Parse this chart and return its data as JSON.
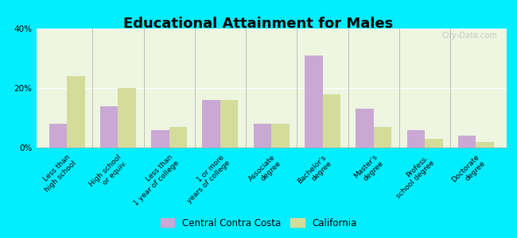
{
  "title": "Educational Attainment for Males",
  "categories": [
    "Less than\nhigh school",
    "High school\nor equiv.",
    "Less than\n1 year of college",
    "1 or more\nyears of college",
    "Associate\ndegree",
    "Bachelor's\ndegree",
    "Master's\ndegree",
    "Profess.\nschool degree",
    "Doctorate\ndegree"
  ],
  "central_values": [
    8,
    14,
    6,
    16,
    8,
    31,
    13,
    6,
    4
  ],
  "california_values": [
    24,
    20,
    7,
    16,
    8,
    18,
    7,
    3,
    2
  ],
  "central_color": "#c9a8d4",
  "california_color": "#d4dc9a",
  "background_color": "#00eeff",
  "plot_bg_color": "#eef5e0",
  "ylim": [
    0,
    40
  ],
  "yticks": [
    0,
    20,
    40
  ],
  "ytick_labels": [
    "0%",
    "20%",
    "40%"
  ],
  "bar_width": 0.35,
  "legend_label_central": "Central Contra Costa",
  "legend_label_california": "California",
  "title_fontsize": 13,
  "tick_fontsize": 6.5,
  "legend_fontsize": 8.5
}
